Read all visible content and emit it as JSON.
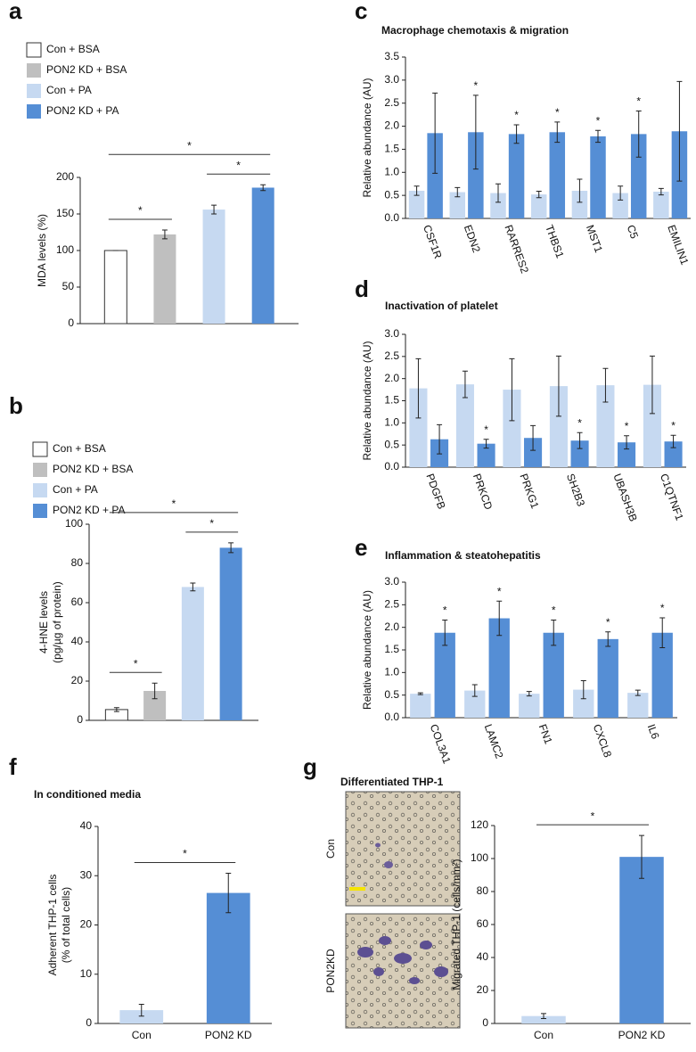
{
  "chart_data": [
    {
      "type": "bar",
      "panel": "a",
      "ylabel": "MDA levels (%)",
      "categories": [
        null
      ],
      "series": [
        {
          "name": "Con + BSA",
          "color": "#ffffff",
          "values": [
            100
          ],
          "errors": [
            0
          ]
        },
        {
          "name": "PON2 KD + BSA",
          "color": "#bfbfbf",
          "values": [
            122
          ],
          "errors": [
            6
          ]
        },
        {
          "name": "Con + PA",
          "color": "#c6d9f1",
          "values": [
            156
          ],
          "errors": [
            6
          ]
        },
        {
          "name": "PON2 KD + PA",
          "color": "#558ed5",
          "values": [
            186
          ],
          "errors": [
            4
          ]
        }
      ],
      "ylim": [
        0,
        200
      ],
      "yticks": [
        0,
        50,
        100,
        150,
        200
      ],
      "annotations": [
        "*",
        "*",
        "*"
      ]
    },
    {
      "type": "bar",
      "panel": "b",
      "ylabel": [
        "4-HNE levels",
        "(pg/µg of protein)"
      ],
      "categories": [
        null
      ],
      "series": [
        {
          "name": "Con + BSA",
          "color": "#ffffff",
          "values": [
            5.5
          ],
          "errors": [
            1
          ]
        },
        {
          "name": "PON2 KD + BSA",
          "color": "#bfbfbf",
          "values": [
            15
          ],
          "errors": [
            4
          ]
        },
        {
          "name": "Con + PA",
          "color": "#c6d9f1",
          "values": [
            68
          ],
          "errors": [
            2
          ]
        },
        {
          "name": "PON2 KD + PA",
          "color": "#558ed5",
          "values": [
            88
          ],
          "errors": [
            2.5
          ]
        }
      ],
      "ylim": [
        0,
        100
      ],
      "yticks": [
        0,
        20,
        40,
        60,
        80,
        100
      ],
      "annotations": [
        "*",
        "*",
        "*"
      ]
    },
    {
      "type": "bar",
      "panel": "c",
      "title": "Macrophage chemotaxis & migration",
      "ylabel": "Relative abundance (AU)",
      "categories": [
        "CSF1R",
        "EDN2",
        "RARRES2",
        "THBS1",
        "MST1",
        "C5",
        "EMILIN1"
      ],
      "series": [
        {
          "color": "#c6d9f1",
          "values": [
            0.6,
            0.57,
            0.55,
            0.52,
            0.6,
            0.55,
            0.58
          ],
          "errors": [
            0.1,
            0.1,
            0.2,
            0.07,
            0.25,
            0.15,
            0.07
          ]
        },
        {
          "color": "#558ed5",
          "values": [
            1.85,
            1.87,
            1.83,
            1.87,
            1.78,
            1.83,
            1.89
          ],
          "errors": [
            0.87,
            0.8,
            0.2,
            0.22,
            0.13,
            0.5,
            1.08
          ]
        }
      ],
      "significance": [
        null,
        "*",
        "*",
        "*",
        "*",
        "*",
        null
      ],
      "ylim": [
        0,
        3.5
      ],
      "yticks": [
        {
          "value": 0,
          "label": "0.0"
        },
        0.5,
        {
          "value": 1,
          "label": "1.0"
        },
        1.5,
        {
          "value": 2,
          "label": "2.0"
        },
        2.5,
        {
          "value": 3,
          "label": "3.0"
        },
        3.5
      ]
    },
    {
      "type": "bar",
      "panel": "d",
      "title": "Inactivation of platelet",
      "ylabel": "Relative abundance (AU)",
      "categories": [
        "PDGFB",
        "PRKCD",
        "PRKG1",
        "SH2B3",
        "UBASH3B",
        "C1QTNF1"
      ],
      "series": [
        {
          "color": "#c6d9f1",
          "values": [
            1.78,
            1.87,
            1.75,
            1.83,
            1.85,
            1.86
          ],
          "errors": [
            0.67,
            0.3,
            0.7,
            0.68,
            0.38,
            0.65
          ]
        },
        {
          "color": "#558ed5",
          "values": [
            0.63,
            0.53,
            0.66,
            0.6,
            0.56,
            0.58
          ],
          "errors": [
            0.33,
            0.1,
            0.28,
            0.18,
            0.15,
            0.14
          ]
        }
      ],
      "significance": [
        null,
        "*",
        null,
        "*",
        "*",
        "*"
      ],
      "ylim": [
        0,
        3
      ],
      "yticks": [
        {
          "value": 0,
          "label": "0.0"
        },
        0.5,
        {
          "value": 1,
          "label": "1.0"
        },
        1.5,
        {
          "value": 2,
          "label": "2.0"
        },
        2.5,
        {
          "value": 3,
          "label": "3.0"
        }
      ]
    },
    {
      "type": "bar",
      "panel": "e",
      "title": "Inflammation & steatohepatitis",
      "ylabel": "Relative abundance (AU)",
      "categories": [
        "COL3A1",
        "LAMC2",
        "FN1",
        "CXCL8",
        "IL6"
      ],
      "series": [
        {
          "color": "#c6d9f1",
          "values": [
            0.53,
            0.6,
            0.53,
            0.62,
            0.55
          ],
          "errors": [
            0.02,
            0.13,
            0.05,
            0.2,
            0.06
          ]
        },
        {
          "color": "#558ed5",
          "values": [
            1.88,
            2.2,
            1.88,
            1.74,
            1.88
          ],
          "errors": [
            0.28,
            0.38,
            0.28,
            0.16,
            0.33
          ]
        }
      ],
      "significance": [
        "*",
        "*",
        "*",
        "*",
        "*"
      ],
      "ylim": [
        0,
        3
      ],
      "yticks": [
        {
          "value": 0,
          "label": "0.0"
        },
        0.5,
        {
          "value": 1,
          "label": "1.0"
        },
        1.5,
        {
          "value": 2,
          "label": "2.0"
        },
        2.5,
        {
          "value": 3,
          "label": "3.0"
        }
      ]
    },
    {
      "type": "bar",
      "panel": "f",
      "title": "In conditioned media",
      "ylabel": [
        "Adherent THP-1 cells",
        "(% of total cells)"
      ],
      "categories": [
        "Con",
        "PON2 KD"
      ],
      "series": [
        {
          "colors": [
            "#c6d9f1",
            "#558ed5"
          ],
          "values": [
            2.7,
            26.5
          ],
          "errors": [
            1.2,
            4
          ]
        }
      ],
      "ylim": [
        0,
        40
      ],
      "yticks": [
        0,
        10,
        20,
        30,
        40
      ],
      "annotations": [
        "*"
      ]
    },
    {
      "type": "bar",
      "panel": "g",
      "image_title": "Differentiated THP-1",
      "image_labels": [
        "Con",
        "PON2KD"
      ],
      "ylabel": "Migrated THP-1 (cells/mm²)",
      "categories": [
        "Con",
        "PON2 KD"
      ],
      "series": [
        {
          "colors": [
            "#c6d9f1",
            "#558ed5"
          ],
          "values": [
            4.5,
            101
          ],
          "errors": [
            1.5,
            13
          ]
        }
      ],
      "ylim": [
        0,
        120
      ],
      "yticks": [
        0,
        20,
        40,
        60,
        80,
        100,
        120
      ],
      "annotations": [
        "*"
      ]
    }
  ]
}
